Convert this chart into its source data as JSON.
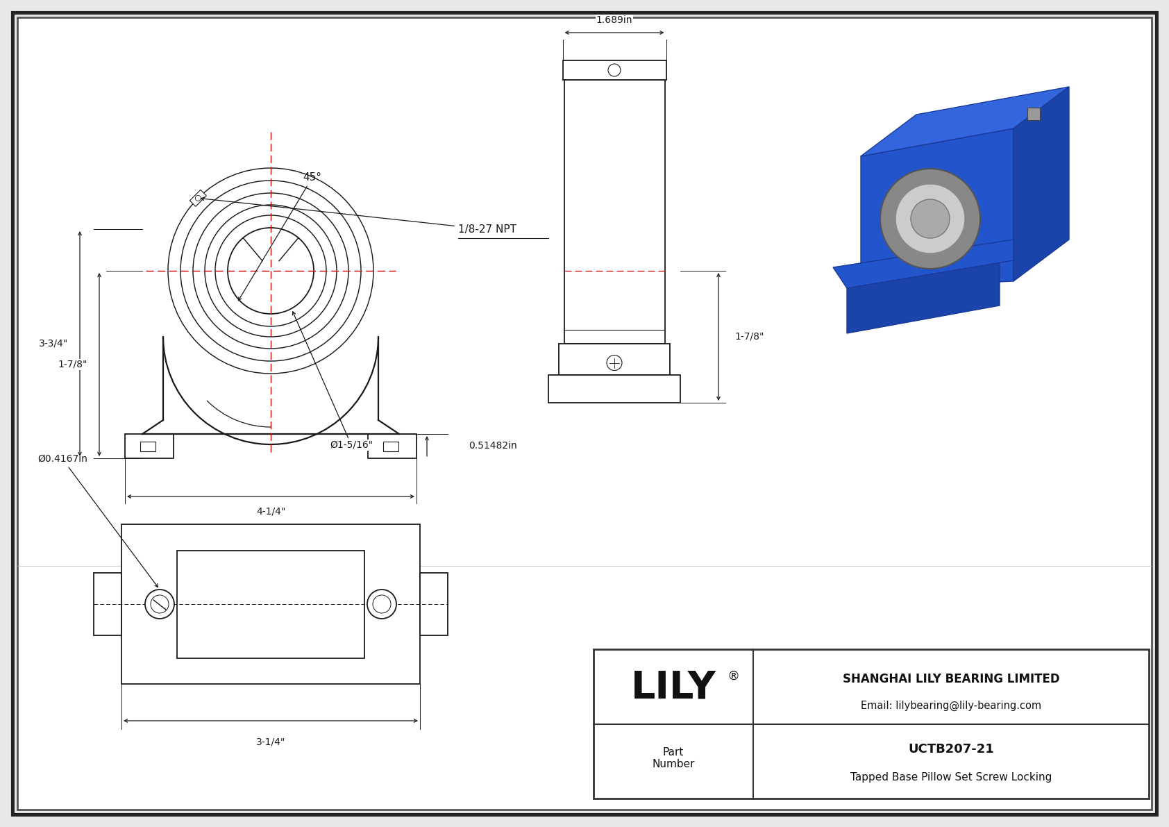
{
  "bg_color": "#e8e8e8",
  "inner_bg": "#ffffff",
  "border_color": "#444444",
  "dc": "#1a1a1a",
  "red": "#cc0000",
  "title_box": {
    "company": "SHANGHAI LILY BEARING LIMITED",
    "email": "Email: lilybearing@lily-bearing.com",
    "part_label": "Part\nNumber",
    "part_number": "UCTB207-21",
    "description": "Tapped Base Pillow Set Screw Locking",
    "logo": "LILY"
  },
  "dims": {
    "angle": "45°",
    "npt": "1/8-27 NPT",
    "height_dim": "3-3/4\"",
    "center_dim": "1-7/8\"",
    "shaft_dim": "Ø1-5/16\"",
    "width_dim": "4-1/4\"",
    "offset_dim": "0.51482in",
    "side_width": "1.689in",
    "side_height": "1-7/8\"",
    "bolt_hole": "Ø0.4167in",
    "bottom_width": "3-1/4\""
  }
}
